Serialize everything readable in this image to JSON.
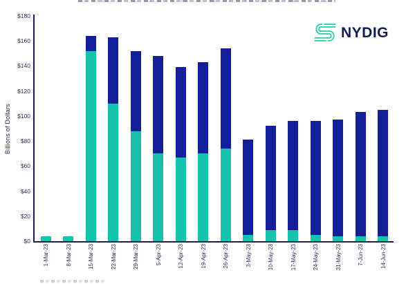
{
  "logo": {
    "text": "NYDIG"
  },
  "colors": {
    "teal": "#17c3ad",
    "navy": "#14209a",
    "axis": "#20204a",
    "tick_label": "#2e3360",
    "logo_navy": "#161b53",
    "logo_teal_top": "#27cfc2",
    "logo_teal_bottom": "#3bd3a0"
  },
  "chart_data": {
    "type": "bar",
    "stacked": true,
    "title": "",
    "title_truncated_at_top_edge": true,
    "ylabel": "Billions of Dollars",
    "ylim": [
      0,
      180
    ],
    "yticks": [
      0,
      20,
      40,
      60,
      80,
      100,
      120,
      140,
      160,
      180
    ],
    "ytick_labels": [
      "$0",
      "$20",
      "$40",
      "$60",
      "$80",
      "$100",
      "$120",
      "$140",
      "$160",
      "$180"
    ],
    "grid": false,
    "legend": {
      "position": "bottom-left",
      "truncated": true,
      "legible": false
    },
    "categories": [
      "1-Mar-23",
      "8-Mar-23",
      "15-Mar-23",
      "22-Mar-23",
      "29-Mar-23",
      "5-Apr-23",
      "12-Apr-23",
      "19-Apr-23",
      "26-Apr-23",
      "3-May-23",
      "10-May-23",
      "17-May-23",
      "24-May-23",
      "31-May-23",
      "7-Jun-23",
      "14-Jun-23"
    ],
    "series": [
      {
        "name": "series-1-teal (legend cut off)",
        "color": "#17c3ad",
        "values": [
          4,
          4,
          152,
          110,
          88,
          70,
          67,
          70,
          74,
          5,
          9,
          9,
          5,
          4,
          4,
          4
        ]
      },
      {
        "name": "series-2-navy (legend cut off)",
        "color": "#14209a",
        "values": [
          0,
          0,
          12,
          53,
          64,
          78,
          72,
          73,
          80,
          76,
          83,
          87,
          91,
          93,
          99,
          101
        ]
      }
    ],
    "totals": [
      4,
      4,
      164,
      163,
      152,
      148,
      139,
      143,
      154,
      81,
      92,
      96,
      96,
      97,
      103,
      105
    ]
  }
}
